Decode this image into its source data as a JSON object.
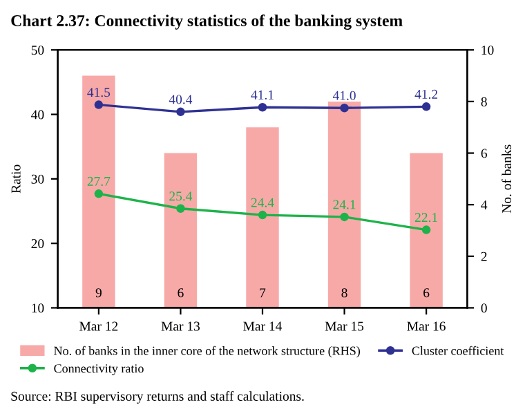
{
  "chart_data": {
    "type": "bar",
    "title": "Chart 2.37: Connectivity statistics of the banking system",
    "categories": [
      "Mar 12",
      "Mar 13",
      "Mar 14",
      "Mar 15",
      "Mar 16"
    ],
    "series": [
      {
        "name": "No. of banks in the inner core of the network structure (RHS)",
        "axis": "y2",
        "color": "#f7a9a8",
        "values": [
          9,
          6,
          7,
          8,
          6
        ],
        "value_labels": [
          "9",
          "6",
          "7",
          "8",
          "6"
        ]
      },
      {
        "name": "Connectivity ratio",
        "type": "line",
        "color": "#1db34a",
        "marker": "circle",
        "values": [
          27.7,
          25.4,
          24.4,
          24.1,
          22.1
        ],
        "value_labels": [
          "27.7",
          "25.4",
          "24.4",
          "24.1",
          "22.1"
        ]
      },
      {
        "name": "Cluster coefficient",
        "type": "line",
        "color": "#2e3192",
        "marker": "circle",
        "values": [
          41.5,
          40.4,
          41.1,
          41.0,
          41.2
        ],
        "value_labels": [
          "41.5",
          "40.4",
          "41.1",
          "41.0",
          "41.2"
        ]
      }
    ],
    "ylabel": "Ratio",
    "y2label": "No. of banks",
    "ylim": [
      10,
      50
    ],
    "yticks": [
      10,
      20,
      30,
      40,
      50
    ],
    "y2lim": [
      0,
      10
    ],
    "y2ticks": [
      0,
      2,
      4,
      6,
      8,
      10
    ],
    "legend": "bottom",
    "grid": false,
    "annotations": [
      "Source: RBI supervisory returns and staff calculations."
    ]
  }
}
